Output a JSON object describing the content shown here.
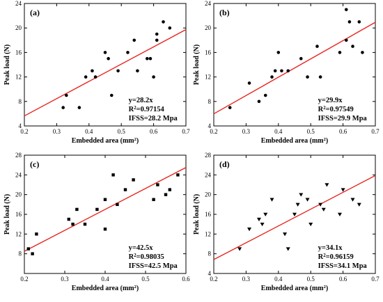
{
  "chart_data": [
    {
      "type": "scatter",
      "panel_label": "(a)",
      "marker": "circle",
      "xlabel": "Embedded area (mm²)",
      "ylabel": "Peak load (N)",
      "xlim": [
        0.2,
        0.7
      ],
      "ylim": [
        4,
        24
      ],
      "xticks": [
        0.2,
        0.3,
        0.4,
        0.5,
        0.6,
        0.7
      ],
      "yticks": [
        4,
        8,
        12,
        16,
        20,
        24
      ],
      "x_tick_labels": [
        "0.2",
        "0.3",
        "0.4",
        "0.5",
        "0.6",
        "0.7"
      ],
      "y_tick_labels": [
        "4",
        "8",
        "12",
        "16",
        "20",
        "24"
      ],
      "fit_slope": 28.2,
      "fit_line_color": "#e8231e",
      "grid": false,
      "annotation": [
        "y=28.2x",
        "R²=0.97154",
        "IFSS=28.2 Mpa"
      ],
      "points": [
        {
          "x": 0.32,
          "y": 7
        },
        {
          "x": 0.33,
          "y": 9
        },
        {
          "x": 0.37,
          "y": 7
        },
        {
          "x": 0.39,
          "y": 12
        },
        {
          "x": 0.41,
          "y": 13
        },
        {
          "x": 0.42,
          "y": 12
        },
        {
          "x": 0.45,
          "y": 16
        },
        {
          "x": 0.46,
          "y": 15
        },
        {
          "x": 0.47,
          "y": 9
        },
        {
          "x": 0.49,
          "y": 13
        },
        {
          "x": 0.52,
          "y": 16
        },
        {
          "x": 0.54,
          "y": 18
        },
        {
          "x": 0.55,
          "y": 13
        },
        {
          "x": 0.58,
          "y": 15
        },
        {
          "x": 0.59,
          "y": 15
        },
        {
          "x": 0.6,
          "y": 12
        },
        {
          "x": 0.61,
          "y": 18
        },
        {
          "x": 0.61,
          "y": 19
        },
        {
          "x": 0.63,
          "y": 21
        },
        {
          "x": 0.65,
          "y": 20
        }
      ]
    },
    {
      "type": "scatter",
      "panel_label": "(b)",
      "marker": "circle",
      "xlabel": "Embedded area (mm²)",
      "ylabel": "Peak load (N)",
      "xlim": [
        0.2,
        0.7
      ],
      "ylim": [
        4,
        24
      ],
      "xticks": [
        0.2,
        0.3,
        0.4,
        0.5,
        0.6,
        0.7
      ],
      "yticks": [
        4,
        8,
        12,
        16,
        20,
        24
      ],
      "x_tick_labels": [
        "0.2",
        "0.3",
        "0.4",
        "0.5",
        "0.6",
        "0.7"
      ],
      "y_tick_labels": [
        "4",
        "8",
        "12",
        "16",
        "20",
        "24"
      ],
      "fit_slope": 29.9,
      "fit_line_color": "#e8231e",
      "grid": false,
      "annotation": [
        "y=29.9x",
        "R²=0.97549",
        "IFSS=29.9 Mpa"
      ],
      "points": [
        {
          "x": 0.25,
          "y": 7
        },
        {
          "x": 0.31,
          "y": 11
        },
        {
          "x": 0.34,
          "y": 8
        },
        {
          "x": 0.36,
          "y": 9
        },
        {
          "x": 0.38,
          "y": 12
        },
        {
          "x": 0.39,
          "y": 13
        },
        {
          "x": 0.4,
          "y": 16
        },
        {
          "x": 0.41,
          "y": 13
        },
        {
          "x": 0.43,
          "y": 13
        },
        {
          "x": 0.47,
          "y": 15
        },
        {
          "x": 0.49,
          "y": 12
        },
        {
          "x": 0.52,
          "y": 17
        },
        {
          "x": 0.53,
          "y": 12
        },
        {
          "x": 0.59,
          "y": 16
        },
        {
          "x": 0.61,
          "y": 18
        },
        {
          "x": 0.61,
          "y": 23
        },
        {
          "x": 0.62,
          "y": 21
        },
        {
          "x": 0.63,
          "y": 17
        },
        {
          "x": 0.65,
          "y": 21
        },
        {
          "x": 0.66,
          "y": 16
        }
      ]
    },
    {
      "type": "scatter",
      "panel_label": "(c)",
      "marker": "square",
      "xlabel": "Embedded area (mm²)",
      "ylabel": "Peak load (N)",
      "xlim": [
        0.2,
        0.6
      ],
      "ylim": [
        4,
        28
      ],
      "xticks": [
        0.2,
        0.3,
        0.4,
        0.5,
        0.6
      ],
      "yticks": [
        8,
        12,
        16,
        20,
        24,
        28
      ],
      "x_tick_labels": [
        "0.2",
        "0.3",
        "0.4",
        "0.5",
        "0.6"
      ],
      "y_tick_labels": [
        "8",
        "12",
        "16",
        "20",
        "24",
        "28"
      ],
      "fit_slope": 42.5,
      "fit_line_color": "#e8231e",
      "grid": false,
      "annotation": [
        "y=42.5x",
        "R²=0.98035",
        "IFSS=42.5 Mpa"
      ],
      "points": [
        {
          "x": 0.21,
          "y": 9
        },
        {
          "x": 0.22,
          "y": 8
        },
        {
          "x": 0.23,
          "y": 12
        },
        {
          "x": 0.31,
          "y": 15
        },
        {
          "x": 0.32,
          "y": 14
        },
        {
          "x": 0.33,
          "y": 17
        },
        {
          "x": 0.35,
          "y": 14
        },
        {
          "x": 0.38,
          "y": 17
        },
        {
          "x": 0.4,
          "y": 13
        },
        {
          "x": 0.4,
          "y": 19
        },
        {
          "x": 0.42,
          "y": 24
        },
        {
          "x": 0.43,
          "y": 18
        },
        {
          "x": 0.45,
          "y": 21
        },
        {
          "x": 0.47,
          "y": 23
        },
        {
          "x": 0.52,
          "y": 19
        },
        {
          "x": 0.53,
          "y": 22
        },
        {
          "x": 0.55,
          "y": 20
        },
        {
          "x": 0.56,
          "y": 21
        },
        {
          "x": 0.58,
          "y": 24
        }
      ]
    },
    {
      "type": "scatter",
      "panel_label": "(d)",
      "marker": "triangle-down",
      "xlabel": "Embedded area (mm²)",
      "ylabel": "Peak load (N)",
      "xlim": [
        0.2,
        0.7
      ],
      "ylim": [
        4,
        28
      ],
      "xticks": [
        0.2,
        0.3,
        0.4,
        0.5,
        0.6,
        0.7
      ],
      "yticks": [
        4,
        8,
        12,
        16,
        20,
        24,
        28
      ],
      "x_tick_labels": [
        "0.2",
        "0.3",
        "0.4",
        "0.5",
        "0.6",
        "0.7"
      ],
      "y_tick_labels": [
        "4",
        "8",
        "12",
        "16",
        "20",
        "24",
        "28"
      ],
      "fit_slope": 34.1,
      "fit_line_color": "#e8231e",
      "grid": false,
      "annotation": [
        "y=34.1x",
        "R²=0.96159",
        "IFSS=34.1 Mpa"
      ],
      "points": [
        {
          "x": 0.28,
          "y": 9
        },
        {
          "x": 0.31,
          "y": 13
        },
        {
          "x": 0.34,
          "y": 15
        },
        {
          "x": 0.35,
          "y": 14
        },
        {
          "x": 0.36,
          "y": 16
        },
        {
          "x": 0.38,
          "y": 19
        },
        {
          "x": 0.42,
          "y": 12
        },
        {
          "x": 0.43,
          "y": 9
        },
        {
          "x": 0.45,
          "y": 16
        },
        {
          "x": 0.46,
          "y": 18
        },
        {
          "x": 0.47,
          "y": 20
        },
        {
          "x": 0.49,
          "y": 19
        },
        {
          "x": 0.5,
          "y": 14
        },
        {
          "x": 0.53,
          "y": 18
        },
        {
          "x": 0.54,
          "y": 17
        },
        {
          "x": 0.55,
          "y": 22
        },
        {
          "x": 0.59,
          "y": 16
        },
        {
          "x": 0.6,
          "y": 21
        },
        {
          "x": 0.63,
          "y": 19
        },
        {
          "x": 0.65,
          "y": 18
        }
      ]
    }
  ]
}
